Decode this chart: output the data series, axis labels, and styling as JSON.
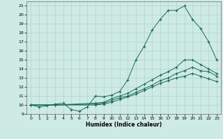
{
  "xlabel": "Humidex (Indice chaleur)",
  "bg_color": "#ceeae4",
  "grid_color": "#b0d4cc",
  "line_color": "#1a6b5a",
  "xlim": [
    -0.5,
    23.5
  ],
  "ylim": [
    9,
    21.5
  ],
  "xticks": [
    0,
    1,
    2,
    3,
    4,
    5,
    6,
    7,
    8,
    9,
    10,
    11,
    12,
    13,
    14,
    15,
    16,
    17,
    18,
    19,
    20,
    21,
    22,
    23
  ],
  "yticks": [
    9,
    10,
    11,
    12,
    13,
    14,
    15,
    16,
    17,
    18,
    19,
    20,
    21
  ],
  "line1_x": [
    0,
    1,
    2,
    3,
    4,
    5,
    6,
    7,
    8,
    9,
    10,
    11,
    12,
    13,
    14,
    15,
    16,
    17,
    18,
    19,
    20,
    21,
    22,
    23
  ],
  "line1_y": [
    10,
    9.8,
    9.9,
    10.1,
    10.2,
    9.5,
    9.3,
    9.8,
    11.0,
    10.9,
    11.1,
    11.5,
    12.8,
    15.0,
    16.5,
    18.3,
    19.5,
    20.5,
    20.5,
    21.0,
    19.5,
    18.5,
    17.0,
    15.0
  ],
  "line2_x": [
    0,
    3,
    8,
    9,
    10,
    11,
    12,
    13,
    14,
    15,
    16,
    17,
    18,
    19,
    20,
    21,
    22,
    23
  ],
  "line2_y": [
    10,
    10,
    10.2,
    10.3,
    10.7,
    11.0,
    11.3,
    11.8,
    12.3,
    12.8,
    13.3,
    13.7,
    14.2,
    15.0,
    15.0,
    14.5,
    14.0,
    13.5
  ],
  "line3_x": [
    0,
    3,
    8,
    9,
    10,
    11,
    12,
    13,
    14,
    15,
    16,
    17,
    18,
    19,
    20,
    21,
    22,
    23
  ],
  "line3_y": [
    10,
    10,
    10.1,
    10.2,
    10.5,
    10.8,
    11.0,
    11.4,
    11.8,
    12.2,
    12.7,
    13.0,
    13.5,
    13.8,
    14.2,
    13.8,
    13.7,
    13.2
  ],
  "line4_x": [
    0,
    3,
    8,
    9,
    10,
    11,
    12,
    13,
    14,
    15,
    16,
    17,
    18,
    19,
    20,
    21,
    22,
    23
  ],
  "line4_y": [
    10,
    10,
    10.0,
    10.1,
    10.3,
    10.6,
    10.9,
    11.2,
    11.6,
    12.0,
    12.4,
    12.7,
    13.0,
    13.2,
    13.5,
    13.2,
    12.9,
    12.6
  ]
}
